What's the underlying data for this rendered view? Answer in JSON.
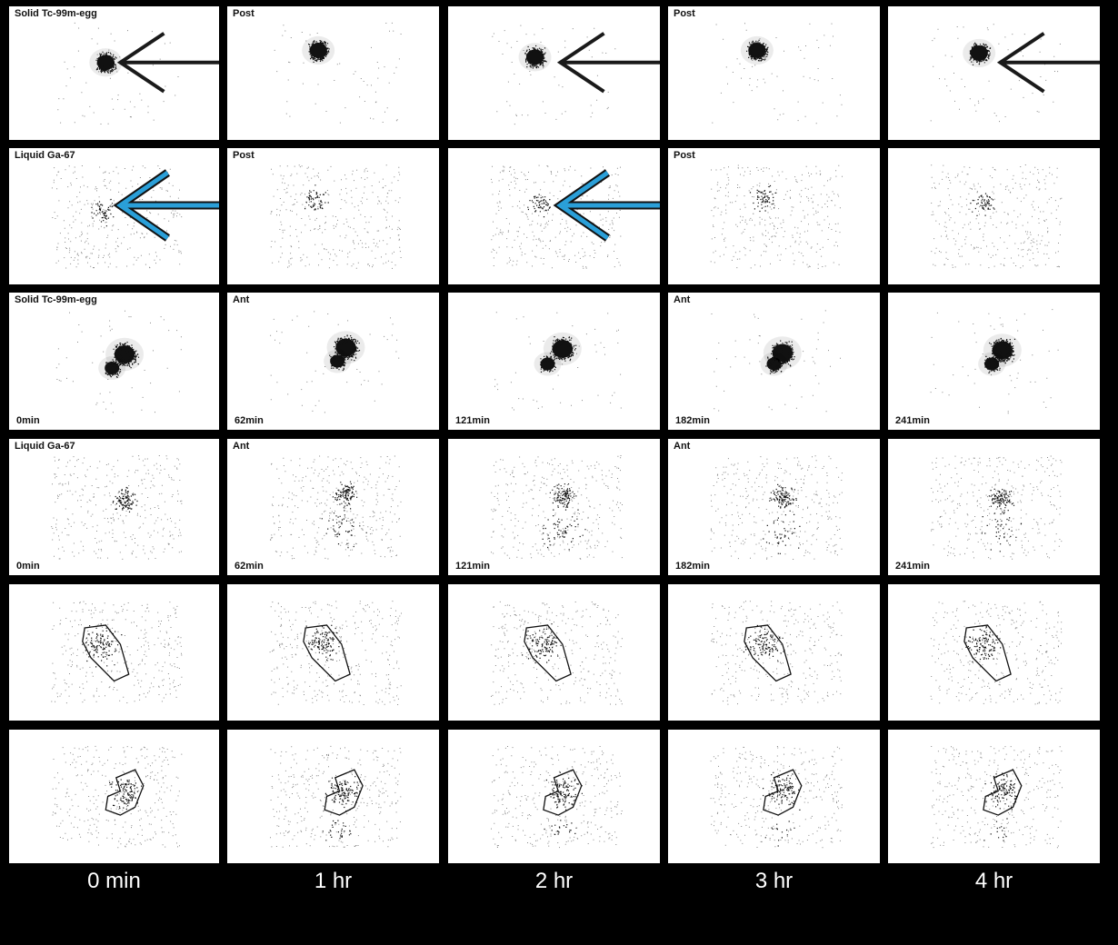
{
  "rows": [
    {
      "top_labels": [
        "Solid  Tc-99m-egg",
        "Post",
        "",
        "Post",
        ""
      ],
      "time_labels": [
        "",
        "",
        "",
        "",
        ""
      ]
    },
    {
      "top_labels": [
        "Liquid  Ga-67",
        "Post",
        "",
        "Post",
        ""
      ],
      "time_labels": [
        "",
        "",
        "",
        "",
        ""
      ]
    },
    {
      "top_labels": [
        "Solid  Tc-99m-egg",
        "Ant",
        "",
        "Ant",
        ""
      ],
      "time_labels": [
        "0min",
        "62min",
        "121min",
        "182min",
        "241min"
      ]
    },
    {
      "top_labels": [
        "Liquid  Ga-67",
        "Ant",
        "",
        "Ant",
        ""
      ],
      "time_labels": [
        "0min",
        "62min",
        "121min",
        "182min",
        "241min"
      ]
    },
    {
      "top_labels": [
        "",
        "",
        "",
        "",
        ""
      ],
      "time_labels": [
        "",
        "",
        "",
        "",
        ""
      ]
    },
    {
      "top_labels": [
        "",
        "",
        "",
        "",
        ""
      ],
      "time_labels": [
        "",
        "",
        "",
        "",
        ""
      ]
    }
  ],
  "column_labels": [
    "0 min",
    "1 hr",
    "2 hr",
    "3 hr",
    "4 hr"
  ],
  "arrows": [
    {
      "name": "black-arrow-icon",
      "row": 0,
      "col": 0,
      "color": "#1a1a1a"
    },
    {
      "name": "black-arrow-icon",
      "row": 0,
      "col": 2,
      "color": "#1a1a1a"
    },
    {
      "name": "black-arrow-icon",
      "row": 0,
      "col": 4,
      "color": "#1a1a1a"
    },
    {
      "name": "blue-arrow-icon",
      "row": 1,
      "col": 0,
      "color": "#2a9fd8"
    },
    {
      "name": "blue-arrow-icon",
      "row": 1,
      "col": 2,
      "color": "#2a9fd8"
    }
  ]
}
